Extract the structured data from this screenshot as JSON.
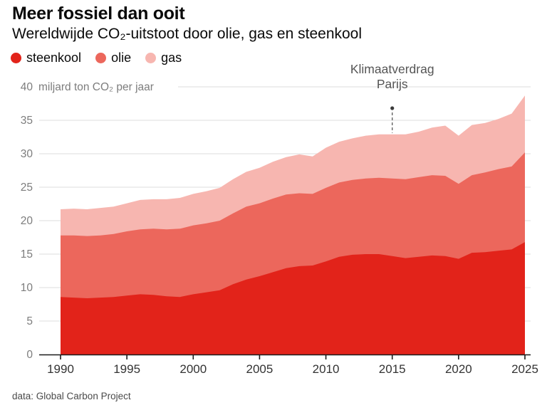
{
  "header": {
    "title": "Meer fossiel dan ooit",
    "subtitle": "Wereldwijde CO₂-uitstoot door olie, gas en steenkool"
  },
  "legend": {
    "items": [
      {
        "label": "steenkool",
        "color": "#e2231a"
      },
      {
        "label": "olie",
        "color": "#ec675c"
      },
      {
        "label": "gas",
        "color": "#f7b6b0"
      }
    ]
  },
  "chart_data": {
    "type": "area",
    "stacked": true,
    "title": "Meer fossiel dan ooit",
    "subtitle": "Wereldwijde CO₂-uitstoot door olie, gas en steenkool",
    "xlabel": "",
    "ylabel": "miljard ton CO₂ per jaar",
    "y_top_tick_label": "40",
    "xlim": [
      1990,
      2025
    ],
    "ylim": [
      0,
      40
    ],
    "grid": true,
    "legend_position": "top-left",
    "x_ticks": [
      1990,
      1995,
      2000,
      2005,
      2010,
      2015,
      2020,
      2025
    ],
    "y_ticks": [
      0,
      5,
      10,
      15,
      20,
      25,
      30,
      35,
      40
    ],
    "x": [
      1990,
      1991,
      1992,
      1993,
      1994,
      1995,
      1996,
      1997,
      1998,
      1999,
      2000,
      2001,
      2002,
      2003,
      2004,
      2005,
      2006,
      2007,
      2008,
      2009,
      2010,
      2011,
      2012,
      2013,
      2014,
      2015,
      2016,
      2017,
      2018,
      2019,
      2020,
      2021,
      2022,
      2023,
      2024,
      2025
    ],
    "series": [
      {
        "name": "steenkool",
        "color": "#e2231a",
        "values": [
          8.6,
          8.5,
          8.4,
          8.5,
          8.6,
          8.8,
          9.0,
          8.9,
          8.7,
          8.6,
          9.0,
          9.3,
          9.6,
          10.5,
          11.2,
          11.7,
          12.3,
          12.9,
          13.2,
          13.3,
          13.9,
          14.6,
          14.9,
          15.0,
          15.0,
          14.7,
          14.4,
          14.6,
          14.8,
          14.7,
          14.3,
          15.2,
          15.3,
          15.5,
          15.7,
          16.8
        ]
      },
      {
        "name": "olie",
        "color": "#ec675c",
        "values": [
          9.2,
          9.3,
          9.3,
          9.3,
          9.4,
          9.6,
          9.7,
          9.9,
          10.0,
          10.2,
          10.3,
          10.3,
          10.4,
          10.6,
          10.9,
          10.9,
          11.0,
          11.0,
          10.9,
          10.7,
          11.0,
          11.1,
          11.2,
          11.3,
          11.4,
          11.6,
          11.8,
          11.9,
          12.0,
          12.0,
          11.2,
          11.6,
          11.9,
          12.2,
          12.4,
          13.4
        ]
      },
      {
        "name": "gas",
        "color": "#f7b6b0",
        "values": [
          3.9,
          4.0,
          4.0,
          4.1,
          4.1,
          4.2,
          4.4,
          4.4,
          4.5,
          4.6,
          4.7,
          4.8,
          4.9,
          5.1,
          5.2,
          5.3,
          5.5,
          5.6,
          5.8,
          5.6,
          6.0,
          6.1,
          6.2,
          6.4,
          6.5,
          6.6,
          6.7,
          6.8,
          7.1,
          7.5,
          7.2,
          7.5,
          7.4,
          7.5,
          7.9,
          8.5
        ]
      }
    ],
    "annotation": {
      "text_lines": [
        "Klimaatverdrag",
        "Parijs"
      ],
      "x": 2015
    }
  },
  "footer": {
    "source": "data: Global Carbon Project"
  }
}
